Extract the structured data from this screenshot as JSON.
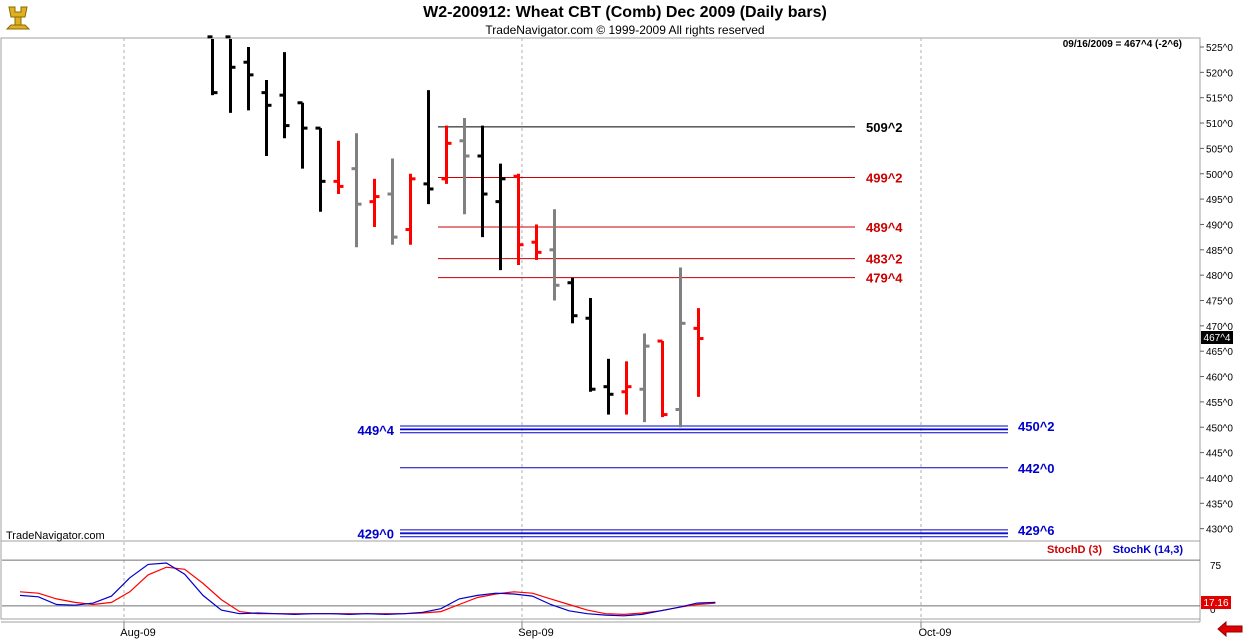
{
  "header": {
    "title": "W2-200912:  Wheat CBT (Comb) Dec 2009  (Daily bars)",
    "subtitle": "TradeNavigator.com © 1999-2009 All rights reserved"
  },
  "info": {
    "last_quote": "09/16/2009 = 467^4 (-2^6)",
    "watermark": "TradeNavigator.com",
    "price_marker": "467^4",
    "stoch_marker": "17.16"
  },
  "colors": {
    "up": "#000000",
    "down": "#ff0000",
    "neutral": "#808080",
    "resistance": "#000000",
    "resistance_alt": "#cc0000",
    "support": "#0000cc",
    "stoch_d": "#ff0000",
    "stoch_k": "#0000cc"
  },
  "chart_data": [
    {
      "type": "ohlc",
      "title": "W2-200912:  Wheat CBT (Comb) Dec 2009  (Daily bars)",
      "y_unit": "cents/bushel",
      "ylim": [
        426,
        527
      ],
      "y_ticks": [
        {
          "v": 525,
          "label": "525^0"
        },
        {
          "v": 520,
          "label": "520^0"
        },
        {
          "v": 515,
          "label": "515^0"
        },
        {
          "v": 510,
          "label": "510^0"
        },
        {
          "v": 505,
          "label": "505^0"
        },
        {
          "v": 500,
          "label": "500^0"
        },
        {
          "v": 495,
          "label": "495^0"
        },
        {
          "v": 490,
          "label": "490^0"
        },
        {
          "v": 485,
          "label": "485^0"
        },
        {
          "v": 480,
          "label": "480^0"
        },
        {
          "v": 475,
          "label": "475^0"
        },
        {
          "v": 470,
          "label": "470^0"
        },
        {
          "v": 465,
          "label": "465^0"
        },
        {
          "v": 460,
          "label": "460^0"
        },
        {
          "v": 455,
          "label": "455^0"
        },
        {
          "v": 450,
          "label": "450^0"
        },
        {
          "v": 445,
          "label": "445^0"
        },
        {
          "v": 440,
          "label": "440^0"
        },
        {
          "v": 435,
          "label": "435^0"
        },
        {
          "v": 430,
          "label": "430^0"
        }
      ],
      "x_labels": [
        {
          "label": "Aug-09",
          "bar": 0
        },
        {
          "label": "Sep-09",
          "bar": 22
        },
        {
          "label": "Oct-09",
          "bar": 44
        }
      ],
      "grid": "vertical dashed at month starts",
      "bars": [
        {
          "o": 527.0,
          "h": 527.0,
          "l": 515.5,
          "c": 516.0,
          "color": "up"
        },
        {
          "o": 527.0,
          "h": 527.0,
          "l": 512.0,
          "c": 521.0,
          "color": "up"
        },
        {
          "o": 522.0,
          "h": 525.0,
          "l": 512.5,
          "c": 519.5,
          "color": "up"
        },
        {
          "o": 516.0,
          "h": 518.5,
          "l": 503.5,
          "c": 513.5,
          "color": "up"
        },
        {
          "o": 515.5,
          "h": 524.0,
          "l": 507.0,
          "c": 509.5,
          "color": "up"
        },
        {
          "o": 514.0,
          "h": 514.0,
          "l": 501.0,
          "c": 509.0,
          "color": "up"
        },
        {
          "o": 509.0,
          "h": 509.0,
          "l": 492.5,
          "c": 498.5,
          "color": "up"
        },
        {
          "o": 498.5,
          "h": 506.5,
          "l": 496.0,
          "c": 497.5,
          "color": "down"
        },
        {
          "o": 501.0,
          "h": 508.0,
          "l": 485.5,
          "c": 494.0,
          "color": "neutral"
        },
        {
          "o": 494.5,
          "h": 499.0,
          "l": 489.5,
          "c": 495.5,
          "color": "down"
        },
        {
          "o": 496.0,
          "h": 503.0,
          "l": 486.0,
          "c": 487.5,
          "color": "neutral"
        },
        {
          "o": 489.0,
          "h": 500.0,
          "l": 486.0,
          "c": 499.0,
          "color": "down"
        },
        {
          "o": 498.0,
          "h": 516.5,
          "l": 494.0,
          "c": 497.0,
          "color": "up"
        },
        {
          "o": 499.0,
          "h": 509.5,
          "l": 498.0,
          "c": 506.0,
          "color": "down"
        },
        {
          "o": 506.5,
          "h": 511.0,
          "l": 492.0,
          "c": 503.5,
          "color": "neutral"
        },
        {
          "o": 503.5,
          "h": 509.5,
          "l": 487.5,
          "c": 496.0,
          "color": "up"
        },
        {
          "o": 494.5,
          "h": 502.0,
          "l": 481.0,
          "c": 499.0,
          "color": "up"
        },
        {
          "o": 499.5,
          "h": 500.0,
          "l": 482.0,
          "c": 486.0,
          "color": "down"
        },
        {
          "o": 486.5,
          "h": 490.0,
          "l": 483.0,
          "c": 484.5,
          "color": "down"
        },
        {
          "o": 485.0,
          "h": 493.0,
          "l": 475.0,
          "c": 478.0,
          "color": "neutral"
        },
        {
          "o": 478.5,
          "h": 479.5,
          "l": 470.5,
          "c": 472.0,
          "color": "up"
        },
        {
          "o": 471.5,
          "h": 475.5,
          "l": 457.0,
          "c": 457.5,
          "color": "up"
        },
        {
          "o": 458.0,
          "h": 463.5,
          "l": 452.5,
          "c": 456.5,
          "color": "up"
        },
        {
          "o": 457.0,
          "h": 463.0,
          "l": 452.5,
          "c": 458.0,
          "color": "down"
        },
        {
          "o": 457.5,
          "h": 468.5,
          "l": 451.0,
          "c": 466.0,
          "color": "neutral"
        },
        {
          "o": 467.0,
          "h": 467.0,
          "l": 452.0,
          "c": 452.5,
          "color": "down"
        },
        {
          "o": 453.5,
          "h": 481.5,
          "l": 450.0,
          "c": 470.5,
          "color": "neutral"
        },
        {
          "o": 469.5,
          "h": 473.5,
          "l": 456.0,
          "c": 467.5,
          "color": "down"
        }
      ],
      "levels": [
        {
          "value": 509.25,
          "label": "509^2",
          "color": "resistance",
          "from_bar": 12,
          "to_bar": 42,
          "style": "single"
        },
        {
          "value": 499.25,
          "label": "499^2",
          "color": "resistance_alt",
          "from_bar": 12,
          "to_bar": 42,
          "style": "single"
        },
        {
          "value": 489.5,
          "label": "489^4",
          "color": "resistance_alt",
          "from_bar": 12,
          "to_bar": 42,
          "style": "single"
        },
        {
          "value": 483.25,
          "label": "483^2",
          "color": "resistance_alt",
          "from_bar": 12,
          "to_bar": 42,
          "style": "single"
        },
        {
          "value": 479.5,
          "label": "479^4",
          "color": "resistance_alt",
          "from_bar": 12,
          "to_bar": 42,
          "style": "single"
        },
        {
          "value": 449.5,
          "label": "449^4",
          "label_side": "left",
          "color": "support",
          "from_bar": 10,
          "to_bar": 54,
          "style": "double"
        },
        {
          "value": 450.25,
          "label": "450^2",
          "label_side": "right",
          "color": "support",
          "from_bar": 10,
          "to_bar": 54,
          "style": "double"
        },
        {
          "value": 442.0,
          "label": "442^0",
          "label_side": "right",
          "color": "support",
          "from_bar": 10,
          "to_bar": 54,
          "style": "single"
        },
        {
          "value": 429.0,
          "label": "429^0",
          "label_side": "left",
          "color": "support",
          "from_bar": 10,
          "to_bar": 54,
          "style": "double"
        },
        {
          "value": 429.75,
          "label": "429^6",
          "label_side": "right",
          "color": "support",
          "from_bar": 10,
          "to_bar": 54,
          "style": "double"
        }
      ]
    },
    {
      "type": "line",
      "title": "",
      "legend": [
        "StochD (3)",
        "StochK (14,3)"
      ],
      "ylim": [
        0,
        100
      ],
      "y_ticks": [
        {
          "v": 75,
          "label": "75"
        },
        {
          "v": 0,
          "label": "0"
        }
      ],
      "reference_lines": [
        85,
        20
      ],
      "series": [
        {
          "name": "StochD (3)",
          "color": "stoch_d",
          "values": [
            40,
            38,
            30,
            25,
            22,
            25,
            40,
            64,
            75,
            72,
            52,
            29,
            12,
            9,
            9,
            9,
            9,
            9,
            9,
            9,
            9,
            9,
            10,
            12,
            22,
            32,
            37,
            40,
            38,
            30,
            22,
            14,
            9,
            8,
            10,
            13,
            18,
            22,
            24
          ]
        },
        {
          "name": "StochK (14,3)",
          "color": "stoch_k",
          "values": [
            35,
            33,
            22,
            21,
            24,
            34,
            60,
            79,
            81,
            65,
            35,
            14,
            9,
            10,
            9,
            8,
            9,
            9,
            8,
            9,
            8,
            9,
            11,
            16,
            30,
            35,
            38,
            37,
            34,
            22,
            13,
            9,
            7,
            6,
            8,
            13,
            18,
            24,
            25
          ]
        }
      ]
    }
  ]
}
